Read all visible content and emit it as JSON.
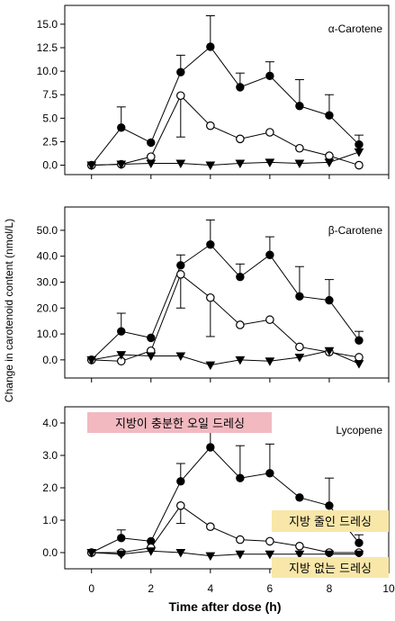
{
  "chart_data": [
    {
      "type": "line",
      "title": "α-Carotene",
      "x": [
        0,
        1,
        2,
        3,
        4,
        5,
        6,
        7,
        8,
        9
      ],
      "ylim": [
        -1,
        17
      ],
      "yticks": [
        "0.0",
        "2.5",
        "5.0",
        "7.5",
        "10.0",
        "12.5",
        "15.0"
      ],
      "ytick_values": [
        0,
        2.5,
        5,
        7.5,
        10,
        12.5,
        15
      ],
      "series": [
        {
          "marker": "filled-circle",
          "values": [
            0,
            4.0,
            2.4,
            9.9,
            12.6,
            8.3,
            9.5,
            6.3,
            5.3,
            2.2
          ],
          "err": [
            0,
            2.2,
            0,
            1.8,
            3.3,
            1.5,
            1.5,
            2.8,
            2.2,
            1.0
          ]
        },
        {
          "marker": "open-circle",
          "values": [
            0,
            0.1,
            0.9,
            7.4,
            4.2,
            2.8,
            3.5,
            1.8,
            1.0,
            0.0
          ],
          "err": [
            0,
            0,
            0,
            0,
            0,
            0,
            0,
            0,
            0,
            0
          ]
        },
        {
          "marker": "filled-triangle-down",
          "values": [
            0,
            0.1,
            0.2,
            0.2,
            0.0,
            0.2,
            0.3,
            0.2,
            0.3,
            1.4
          ],
          "err": [
            0,
            0,
            0,
            0,
            0,
            0,
            0,
            0,
            0,
            0
          ]
        }
      ],
      "down_err": [
        {
          "series": 1,
          "x": 3,
          "to": 3.0
        }
      ]
    },
    {
      "type": "line",
      "title": "β-Carotene",
      "x": [
        0,
        1,
        2,
        3,
        4,
        5,
        6,
        7,
        8,
        9
      ],
      "ylim": [
        -7,
        59
      ],
      "yticks": [
        "0.0",
        "10.0",
        "20.0",
        "30.0",
        "40.0",
        "50.0"
      ],
      "ytick_values": [
        0,
        10,
        20,
        30,
        40,
        50
      ],
      "series": [
        {
          "marker": "filled-circle",
          "values": [
            0,
            11.0,
            8.5,
            36.5,
            44.5,
            32.0,
            40.5,
            24.5,
            23.0,
            7.5
          ],
          "err": [
            0,
            7.0,
            0,
            4.0,
            9.5,
            5.0,
            7.0,
            11.5,
            8.0,
            3.5
          ]
        },
        {
          "marker": "open-circle",
          "values": [
            0,
            -0.5,
            3.5,
            33.0,
            24.0,
            13.5,
            15.5,
            5.0,
            3.0,
            1.0
          ],
          "err": [
            0,
            0,
            0,
            0,
            0,
            0,
            0,
            0,
            0,
            0
          ]
        },
        {
          "marker": "filled-triangle-down",
          "values": [
            0,
            2.0,
            1.5,
            1.5,
            -2.0,
            0.0,
            -0.5,
            1.0,
            3.5,
            -1.5
          ],
          "err": [
            0,
            0,
            0,
            0,
            0,
            0,
            0,
            0,
            0,
            0
          ]
        }
      ],
      "down_err": [
        {
          "series": 1,
          "x": 3,
          "to": 20.0
        },
        {
          "series": 1,
          "x": 4,
          "to": 9.0
        }
      ]
    },
    {
      "type": "line",
      "title": "Lycopene",
      "x": [
        0,
        1,
        2,
        3,
        4,
        5,
        6,
        7,
        8,
        9
      ],
      "ylim": [
        -0.5,
        4.5
      ],
      "yticks": [
        "0.0",
        "1.0",
        "2.0",
        "3.0",
        "4.0"
      ],
      "ytick_values": [
        0,
        1,
        2,
        3,
        4
      ],
      "xticks": [
        "0",
        "2",
        "4",
        "6",
        "8",
        "10"
      ],
      "xtick_values": [
        0,
        2,
        4,
        6,
        8,
        10
      ],
      "series": [
        {
          "marker": "filled-circle",
          "values": [
            0,
            0.45,
            0.35,
            2.2,
            3.25,
            2.3,
            2.45,
            1.7,
            1.45,
            0.3
          ],
          "err": [
            0,
            0.25,
            0,
            0.55,
            1.0,
            1.0,
            0.9,
            0.0,
            0.85,
            0.25
          ]
        },
        {
          "marker": "open-circle",
          "values": [
            0,
            0.0,
            0.15,
            1.45,
            0.8,
            0.4,
            0.35,
            0.2,
            0.0,
            0.0
          ],
          "err": [
            0,
            0,
            0,
            0,
            0,
            0,
            0,
            0,
            0,
            0
          ]
        },
        {
          "marker": "filled-triangle-down",
          "values": [
            0,
            -0.05,
            0.05,
            0.0,
            -0.1,
            -0.05,
            -0.05,
            -0.05,
            -0.05,
            -0.05
          ],
          "err": [
            0,
            0,
            0,
            0,
            0,
            0,
            0,
            0,
            0,
            0
          ]
        }
      ],
      "down_err": [
        {
          "series": 1,
          "x": 3,
          "to": 0.9
        }
      ]
    }
  ],
  "xlabel": "Time after dose (h)",
  "ylabel": "Change in carotenoid content (nmol/L)",
  "annotations": {
    "full_fat": "지방이 충분한 오일 드레싱",
    "reduced_fat": "지방 줄인 드레싱",
    "no_fat": "지방 없는 드레싱"
  },
  "colors": {
    "full_fat_bg": "#f2b9c1",
    "reduced_fat_bg": "#f8e7a9",
    "no_fat_bg": "#f8e7a9",
    "ink": "#000000"
  }
}
